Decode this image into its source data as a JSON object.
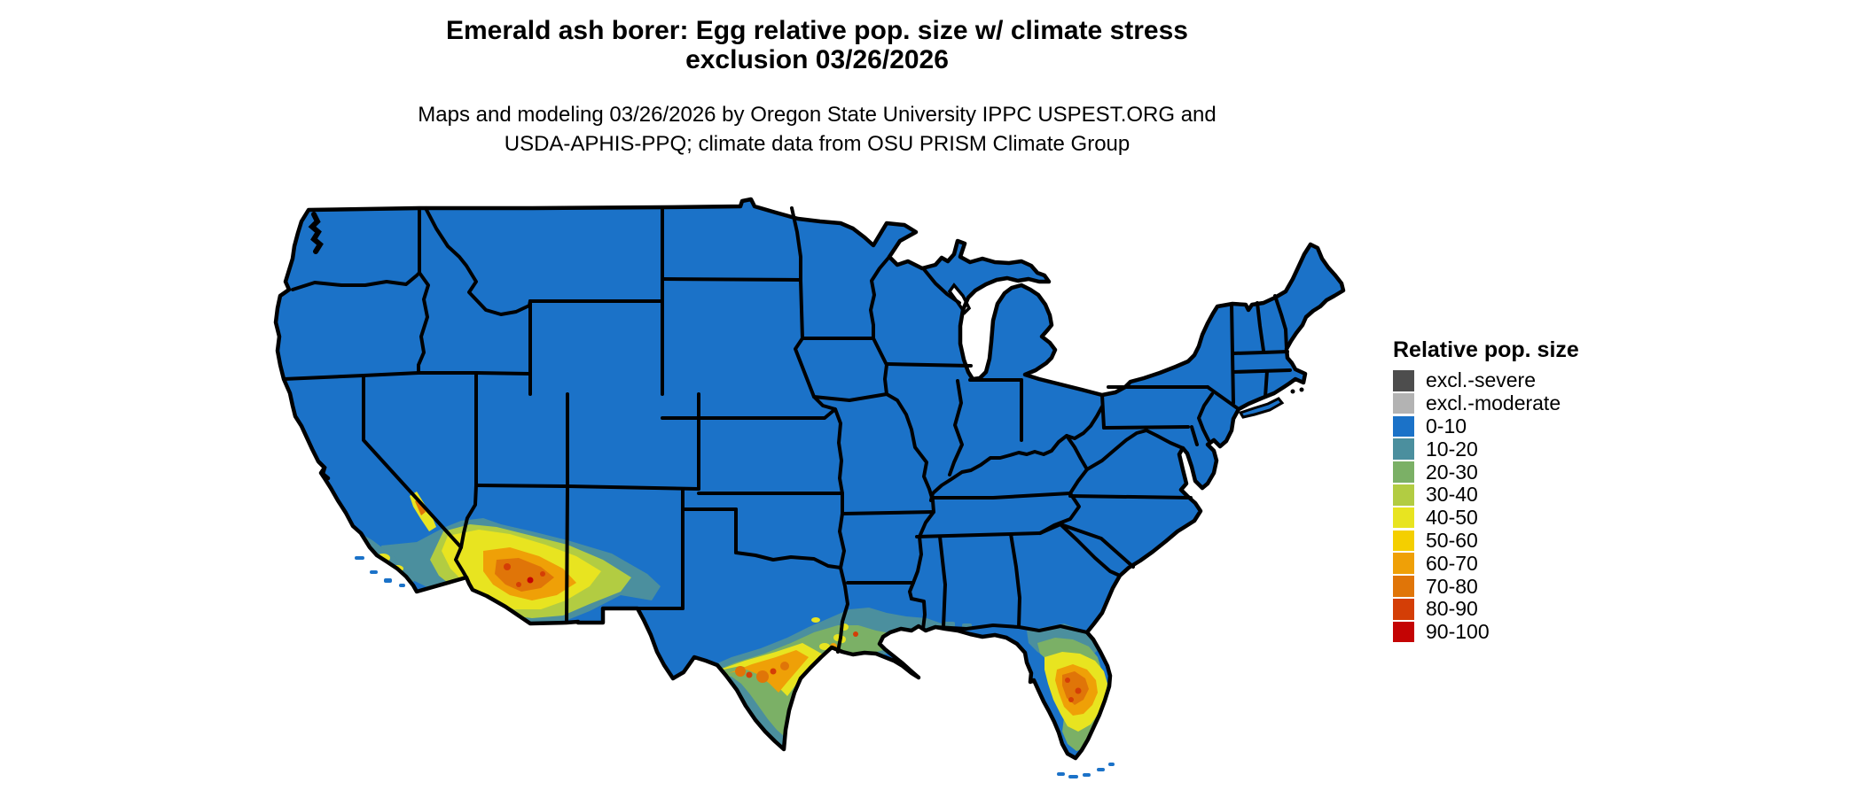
{
  "header": {
    "title_line1": "Emerald ash borer: Egg relative pop. size w/ climate stress",
    "title_line2": "exclusion 03/26/2026",
    "subtitle_line1": "Maps and modeling 03/26/2026 by Oregon State University IPPC USPEST.ORG and",
    "subtitle_line2": "USDA-APHIS-PPQ; climate data from OSU PRISM Climate Group"
  },
  "legend": {
    "title": "Relative pop. size",
    "items": [
      {
        "label": "excl.-severe",
        "color": "#4d4d4d"
      },
      {
        "label": "excl.-moderate",
        "color": "#b3b3b3"
      },
      {
        "label": "0-10",
        "color": "#1b72c8"
      },
      {
        "label": "10-20",
        "color": "#4b8f9e"
      },
      {
        "label": "20-30",
        "color": "#7bb066"
      },
      {
        "label": "30-40",
        "color": "#b2cc42"
      },
      {
        "label": "40-50",
        "color": "#e8e420"
      },
      {
        "label": "50-60",
        "color": "#f4cf00"
      },
      {
        "label": "60-70",
        "color": "#efa007"
      },
      {
        "label": "70-80",
        "color": "#e07508"
      },
      {
        "label": "80-90",
        "color": "#d43e06"
      },
      {
        "label": "90-100",
        "color": "#c40404"
      }
    ]
  },
  "map": {
    "background_color": "#ffffff",
    "land_color": "#1b72c8",
    "border_color": "#000000",
    "lake_color": "#ffffff"
  },
  "chart_data": {
    "type": "heatmap",
    "title": "Emerald ash borer: Egg relative pop. size w/ climate stress exclusion 03/26/2026",
    "subtitle": "Maps and modeling 03/26/2026 by Oregon State University IPPC USPEST.ORG and USDA-APHIS-PPQ; climate data from OSU PRISM Climate Group",
    "legend_title": "Relative pop. size",
    "legend_position": "right",
    "classes": [
      "excl.-severe",
      "excl.-moderate",
      "0-10",
      "10-20",
      "20-30",
      "30-40",
      "40-50",
      "50-60",
      "60-70",
      "70-80",
      "80-90",
      "90-100"
    ],
    "class_colors": [
      "#4d4d4d",
      "#b3b3b3",
      "#1b72c8",
      "#4b8f9e",
      "#7bb066",
      "#b2cc42",
      "#e8e420",
      "#f4cf00",
      "#efa007",
      "#e07508",
      "#d43e06",
      "#c40404"
    ],
    "region": "contiguous United States, state boundaries drawn in black",
    "baseline_class_over_most_of_us": "0-10",
    "hotspots": [
      {
        "area": "southeastern California coast and desert (Santa Barbara to San Diego, Death Valley strip)",
        "classes": "10-20 to 70-80 speckled"
      },
      {
        "area": "southwestern/southern Arizona around Colorado River, Phoenix and Tucson",
        "classes": "40-50 core 60-80 with 80-100 specks"
      },
      {
        "area": "south-central Texas band from Rio Grande to upper Gulf coast",
        "classes": "20-50 band with 60-80 core and 80-100 specks"
      },
      {
        "area": "Louisiana Gulf coast",
        "classes": "10-30 with 40-60 and isolated 60-90 specks"
      },
      {
        "area": "central Florida peninsula",
        "classes": "40-50 with 60-80 core and 80-90 specks, 10-30 fringe north and south"
      }
    ]
  }
}
